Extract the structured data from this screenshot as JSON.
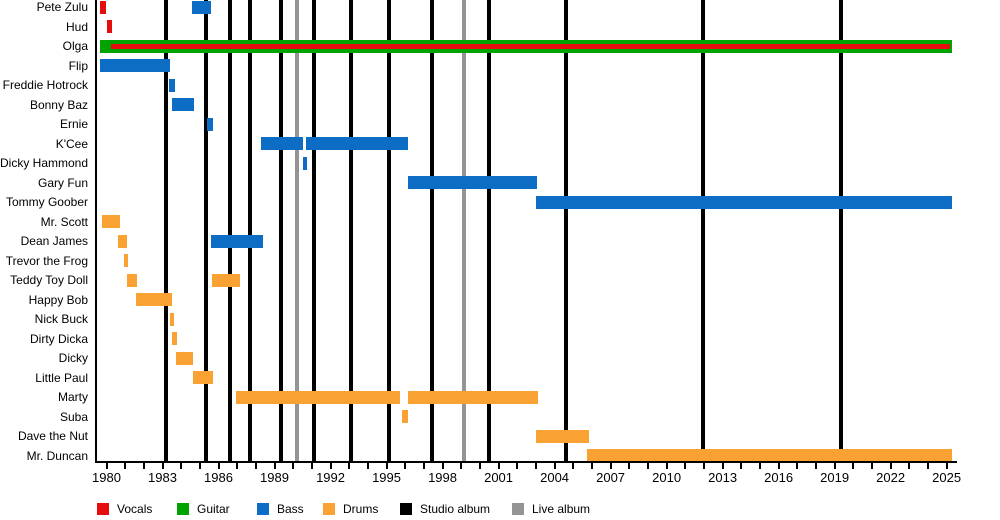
{
  "chart_data": {
    "type": "timeline",
    "description": "Band members timeline (Gantt-style) with roles as colored bars and album releases as vertical lines",
    "axis": {
      "x_start_year": 1979.65,
      "x_end_year": 2025.6,
      "labeled_years": [
        1980,
        1983,
        1986,
        1989,
        1992,
        1995,
        1998,
        2001,
        2004,
        2007,
        2010,
        2013,
        2016,
        2019,
        2022,
        2025
      ],
      "minor_tick_step": 1,
      "minor_tick_first": 1980,
      "minor_tick_last": 2025
    },
    "legend": [
      {
        "label": "Vocals",
        "color": "#E60D0D"
      },
      {
        "label": "Guitar",
        "color": "#00A300"
      },
      {
        "label": "Bass",
        "color": "#0D6DC5"
      },
      {
        "label": "Drums",
        "color": "#F9A233"
      },
      {
        "label": "Studio album",
        "color": "#000000"
      },
      {
        "label": "Live album",
        "color": "#949494"
      }
    ],
    "role_colors": {
      "Vocals": "#E60D0D",
      "Guitar": "#00A300",
      "Bass": "#0D6DC5",
      "Drums": "#F9A233"
    },
    "members": [
      {
        "name": "Pete Zulu",
        "segments": [
          {
            "role": "Vocals",
            "start": 1979.65,
            "end": 1980.0
          },
          {
            "role": "Bass",
            "start": 1984.6,
            "end": 1985.6
          }
        ]
      },
      {
        "name": "Hud",
        "segments": [
          {
            "role": "Vocals",
            "start": 1980.0,
            "end": 1980.3
          }
        ]
      },
      {
        "name": "Olga",
        "segments": [
          {
            "role": "Guitar",
            "start": 1979.65,
            "end": 2025.3
          },
          {
            "role": "Vocals",
            "start": 1980.25,
            "end": 2025.2,
            "overlay": true
          }
        ]
      },
      {
        "name": "Flip",
        "segments": [
          {
            "role": "Bass",
            "start": 1979.65,
            "end": 1983.4
          }
        ]
      },
      {
        "name": "Freddie Hotrock",
        "segments": [
          {
            "role": "Bass",
            "start": 1983.35,
            "end": 1983.65
          }
        ]
      },
      {
        "name": "Bonny Baz",
        "segments": [
          {
            "role": "Bass",
            "start": 1983.5,
            "end": 1984.7
          }
        ]
      },
      {
        "name": "Ernie",
        "segments": [
          {
            "role": "Bass",
            "start": 1985.4,
            "end": 1985.7
          }
        ]
      },
      {
        "name": "K'Cee",
        "segments": [
          {
            "role": "Bass",
            "start": 1988.3,
            "end": 1990.5
          },
          {
            "role": "Bass",
            "start": 1990.7,
            "end": 1996.15
          }
        ]
      },
      {
        "name": "Dicky Hammond",
        "segments": [
          {
            "role": "Bass",
            "start": 1990.5,
            "end": 1990.75
          }
        ]
      },
      {
        "name": "Gary Fun",
        "segments": [
          {
            "role": "Bass",
            "start": 1996.15,
            "end": 2003.05
          }
        ]
      },
      {
        "name": "Tommy Goober",
        "segments": [
          {
            "role": "Bass",
            "start": 2003.0,
            "end": 2025.3
          }
        ]
      },
      {
        "name": "Mr. Scott",
        "segments": [
          {
            "role": "Drums",
            "start": 1979.75,
            "end": 1980.7
          }
        ]
      },
      {
        "name": "Dean James",
        "segments": [
          {
            "role": "Drums",
            "start": 1980.6,
            "end": 1981.1
          },
          {
            "role": "Bass",
            "start": 1985.6,
            "end": 1988.4
          }
        ]
      },
      {
        "name": "Trevor the Frog",
        "segments": [
          {
            "role": "Drums",
            "start": 1980.95,
            "end": 1981.15
          }
        ]
      },
      {
        "name": "Teddy Toy Doll",
        "segments": [
          {
            "role": "Drums",
            "start": 1981.1,
            "end": 1981.65
          },
          {
            "role": "Drums",
            "start": 1985.65,
            "end": 1987.15
          }
        ]
      },
      {
        "name": "Happy Bob",
        "segments": [
          {
            "role": "Drums",
            "start": 1981.6,
            "end": 1983.5
          }
        ]
      },
      {
        "name": "Nick Buck",
        "segments": [
          {
            "role": "Drums",
            "start": 1983.4,
            "end": 1983.6
          }
        ]
      },
      {
        "name": "Dirty Dicka",
        "segments": [
          {
            "role": "Drums",
            "start": 1983.5,
            "end": 1983.75
          }
        ]
      },
      {
        "name": "Dicky",
        "segments": [
          {
            "role": "Drums",
            "start": 1983.7,
            "end": 1984.65
          }
        ]
      },
      {
        "name": "Little Paul",
        "segments": [
          {
            "role": "Drums",
            "start": 1984.65,
            "end": 1985.7
          }
        ]
      },
      {
        "name": "Marty",
        "segments": [
          {
            "role": "Drums",
            "start": 1986.95,
            "end": 1995.7
          },
          {
            "role": "Drums",
            "start": 1996.15,
            "end": 2003.1
          }
        ]
      },
      {
        "name": "Suba",
        "segments": [
          {
            "role": "Drums",
            "start": 1995.85,
            "end": 1996.15
          }
        ]
      },
      {
        "name": "Dave the Nut",
        "segments": [
          {
            "role": "Drums",
            "start": 2003.0,
            "end": 2005.85
          }
        ]
      },
      {
        "name": "Mr. Duncan",
        "segments": [
          {
            "role": "Drums",
            "start": 2005.75,
            "end": 2025.3
          }
        ]
      }
    ],
    "albums": {
      "studio_years": [
        1983.2,
        1985.35,
        1986.6,
        1987.7,
        1989.35,
        1991.1,
        1993.1,
        1995.15,
        1997.45,
        2000.5,
        2004.6,
        2011.95,
        2019.35
      ],
      "live_years": [
        1990.2,
        1999.15
      ]
    }
  }
}
